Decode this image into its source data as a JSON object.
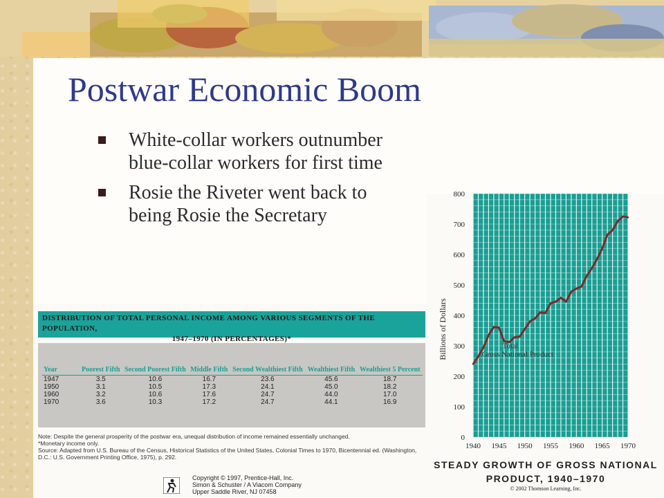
{
  "slide": {
    "title": "Postwar Economic Boom",
    "bullets": [
      "White-collar workers outnumber blue-collar workers for first time",
      "Rosie the Riveter went back to being Rosie the Secretary"
    ]
  },
  "table": {
    "title_line1": "Distribution of Total Personal Income among Various Segments of the Population,",
    "title_line2": "1947–1970 (in Percentages)*",
    "headers": [
      "Year",
      "Poorest Fifth",
      "Second Poorest Fifth",
      "Middle Fifth",
      "Second Wealthiest Fifth",
      "Wealthiest Fifth",
      "Wealthiest 5 Percent"
    ],
    "rows": [
      [
        "1947",
        "3.5",
        "10.6",
        "16.7",
        "23.6",
        "45.6",
        "18.7"
      ],
      [
        "1950",
        "3.1",
        "10.5",
        "17.3",
        "24.1",
        "45.0",
        "18.2"
      ],
      [
        "1960",
        "3.2",
        "10.6",
        "17.6",
        "24.7",
        "44.0",
        "17.0"
      ],
      [
        "1970",
        "3.6",
        "10.3",
        "17.2",
        "24.7",
        "44.1",
        "16.9"
      ]
    ],
    "note": "Note: Despite the general prosperity of the postwar era, unequal distribution of income remained essentially unchanged.",
    "footnote": "*Monetary income only.",
    "source": "Source: Adapted from U.S. Bureau of the Census, Historical Statistics of the United States, Colonial Times to 1970, Bicentennial ed. (Washington, D.C.: U.S. Government Printing Office, 1975), p. 292.",
    "copyright_lines": [
      "Copyright © 1997, Prentice-Hall, Inc.",
      "Simon & Schuster / A Viacom Company",
      "Upper Saddle River, NJ 07458"
    ]
  },
  "chart_data": {
    "type": "line",
    "ylabel": "Billions of Dollars",
    "series_label_line1": "Total",
    "series_label_line2": "Gross National Product",
    "caption_line1": "Steady Growth of Gross National",
    "caption_line2": "Product, 1940–1970",
    "credit": "© 2002 Thomson Learning, Inc.",
    "xlim": [
      1940,
      1970
    ],
    "ylim": [
      0,
      800
    ],
    "xticks": [
      1940,
      1945,
      1950,
      1955,
      1960,
      1965,
      1970
    ],
    "yticks": [
      0,
      100,
      200,
      300,
      400,
      500,
      600,
      700,
      800
    ],
    "line_color": "#7a2a2a",
    "grid_color": "#1a9e93",
    "x": [
      1940,
      1941,
      1942,
      1943,
      1944,
      1945,
      1946,
      1947,
      1948,
      1949,
      1950,
      1951,
      1952,
      1953,
      1954,
      1955,
      1956,
      1957,
      1958,
      1959,
      1960,
      1961,
      1962,
      1963,
      1964,
      1965,
      1966,
      1967,
      1968,
      1969,
      1970
    ],
    "values": [
      240,
      265,
      295,
      335,
      362,
      360,
      315,
      312,
      328,
      330,
      355,
      380,
      390,
      410,
      408,
      440,
      445,
      458,
      445,
      478,
      488,
      495,
      530,
      555,
      585,
      620,
      665,
      680,
      710,
      725,
      722
    ]
  }
}
